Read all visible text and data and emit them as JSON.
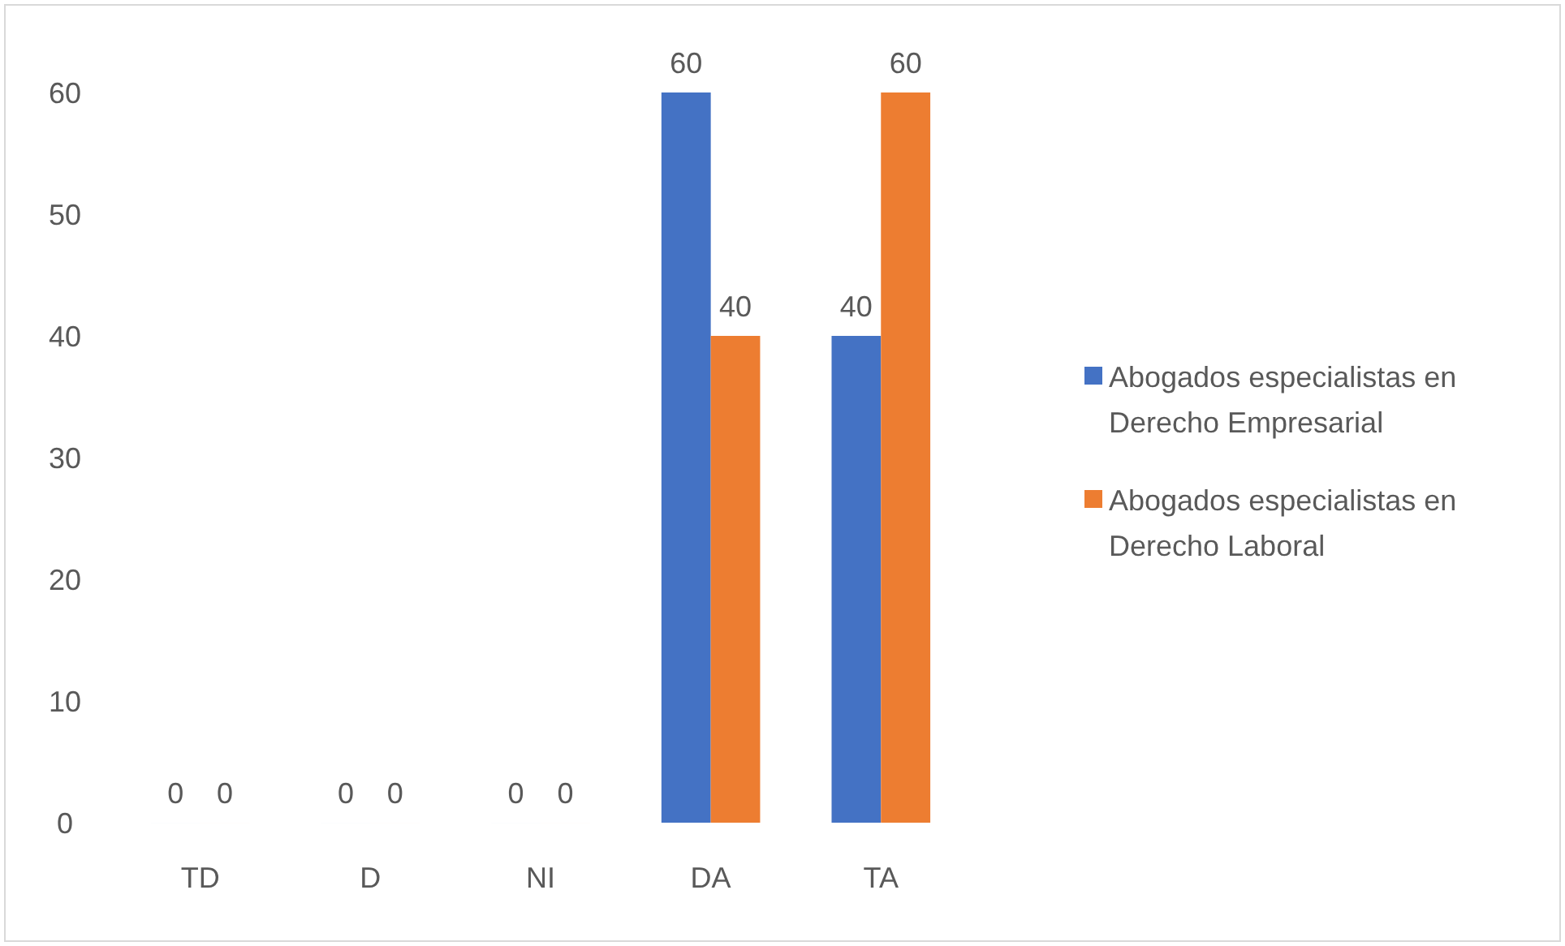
{
  "chart_data": {
    "type": "bar",
    "categories": [
      "TD",
      "D",
      "NI",
      "DA",
      "TA"
    ],
    "series": [
      {
        "name": "Abogados especialistas en Derecho Empresarial",
        "color": "#4472c4",
        "values": [
          0,
          0,
          0,
          60,
          40
        ]
      },
      {
        "name": "Abogados especialistas en Derecho Laboral",
        "color": "#ed7d31",
        "values": [
          0,
          0,
          0,
          40,
          60
        ]
      }
    ],
    "ylim": [
      0,
      60
    ],
    "yticks": [
      0,
      10,
      20,
      30,
      40,
      50,
      60
    ],
    "grid": false,
    "legend": "right",
    "data_labels": true
  }
}
